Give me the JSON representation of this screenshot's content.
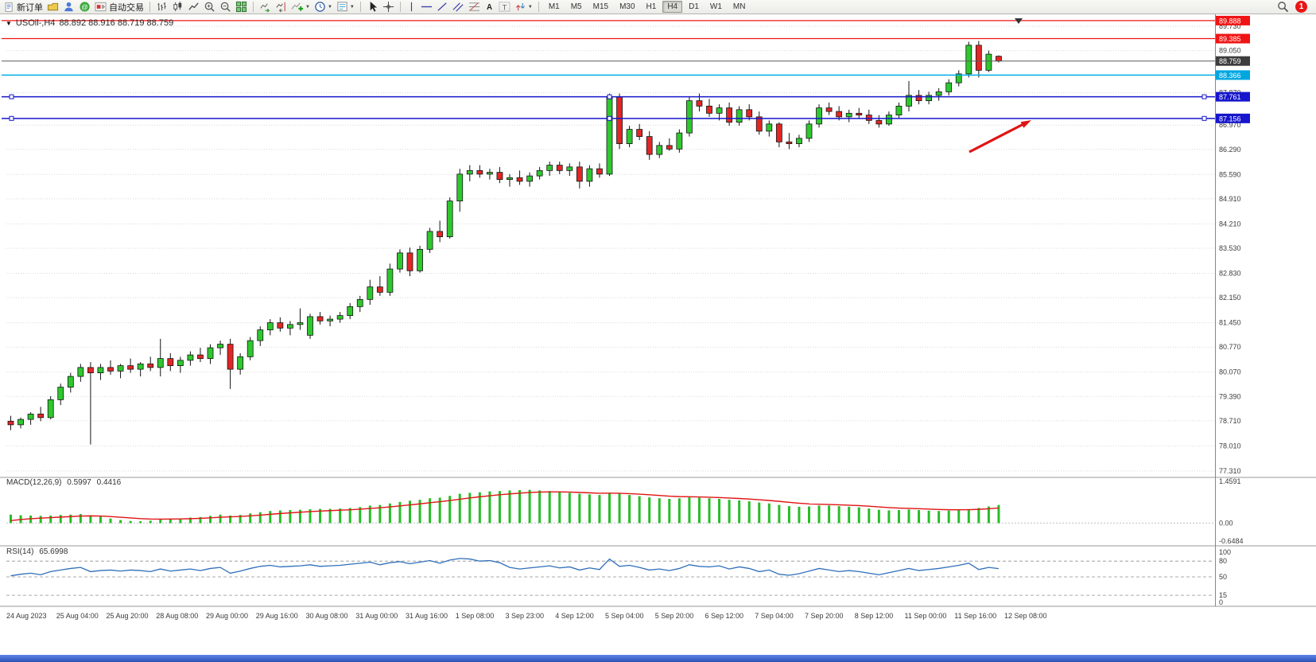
{
  "window": {
    "symbol": "USOil-,H4",
    "ohlc": "88.892 88.916 88.719 88.759"
  },
  "toolbar": {
    "new_order_label": "新订单",
    "autotrading_label": "自动交易",
    "timeframes": [
      "M1",
      "M5",
      "M15",
      "M30",
      "H1",
      "H4",
      "D1",
      "W1",
      "MN"
    ],
    "active_timeframe": "H4",
    "notification_count": "1",
    "icons": [
      "new-order-icon",
      "profiles-icon",
      "person-icon",
      "community-icon",
      "autotrading-icon",
      "bars-icon",
      "candlesticks-icon",
      "line-chart-icon",
      "zoom-in-icon",
      "zoom-out-icon",
      "tile-windows-icon",
      "auto-scroll-icon",
      "chart-shift-icon",
      "indicators-icon",
      "periods-icon",
      "templates-icon",
      "cursor-icon",
      "crosshair-icon",
      "vertical-line-icon",
      "horizontal-line-icon",
      "trendline-icon",
      "channel-icon",
      "fibonacci-icon",
      "text-icon",
      "label-icon",
      "arrows-icon",
      "search-icon"
    ]
  },
  "indicators": {
    "macd_label": "MACD(12,26,9)",
    "macd_value": "0.5997",
    "macd_signal": "0.4416",
    "rsi_label": "RSI(14)",
    "rsi_value": "65.6998"
  },
  "chart_data": {
    "type": "candlestick",
    "symbol": "USOil-",
    "timeframe": "H4",
    "current": {
      "open": 88.892,
      "high": 88.916,
      "low": 88.719,
      "close": 88.759
    },
    "colors": {
      "up": "#2ec82e",
      "down": "#e22626",
      "wick": "#141414",
      "macd": "#28bc28",
      "signal": "#e01414",
      "rsi": "#2f6fba",
      "grid": "#d9d9d9"
    },
    "y_axis": {
      "labels": [
        "89.730",
        "89.050",
        "87.870",
        "86.970",
        "86.290",
        "85.590",
        "84.910",
        "84.210",
        "83.530",
        "82.830",
        "82.150",
        "81.450",
        "80.770",
        "80.070",
        "79.390",
        "78.710",
        "78.010",
        "77.310"
      ]
    },
    "price_lines": [
      {
        "price": "89.888",
        "color": "#f01414",
        "badge_color": "#f01414",
        "width": 1.2
      },
      {
        "price": "89.385",
        "color": "#f01414",
        "badge_color": "#f01414",
        "width": 1.2
      },
      {
        "price": "88.759",
        "color": "#5a5a5a",
        "badge_color": "#3d3d3d",
        "width": 1
      },
      {
        "price": "88.366",
        "color": "#00b0e8",
        "badge_color": "#00a6e0",
        "width": 1.5
      },
      {
        "price": "87.761",
        "color": "#1616cc",
        "badge_color": "#1616cc",
        "width": 1.5,
        "handles": true
      },
      {
        "price": "87.156",
        "color": "#1616cc",
        "badge_color": "#1616cc",
        "width": 1.5,
        "handles": true
      }
    ],
    "candles": [
      [
        78.7,
        78.85,
        78.45,
        78.6
      ],
      [
        78.6,
        78.8,
        78.5,
        78.75
      ],
      [
        78.75,
        78.95,
        78.6,
        78.9
      ],
      [
        78.9,
        79.1,
        78.7,
        78.8
      ],
      [
        78.8,
        79.4,
        78.75,
        79.3
      ],
      [
        79.3,
        79.75,
        79.15,
        79.65
      ],
      [
        79.65,
        80.05,
        79.5,
        79.95
      ],
      [
        79.95,
        80.3,
        79.8,
        80.2
      ],
      [
        80.2,
        80.35,
        78.05,
        80.05
      ],
      [
        80.05,
        80.3,
        79.85,
        80.2
      ],
      [
        80.2,
        80.4,
        80.0,
        80.1
      ],
      [
        80.1,
        80.3,
        79.9,
        80.25
      ],
      [
        80.25,
        80.45,
        80.05,
        80.15
      ],
      [
        80.15,
        80.35,
        79.95,
        80.3
      ],
      [
        80.3,
        80.5,
        80.1,
        80.2
      ],
      [
        80.2,
        81.0,
        79.95,
        80.45
      ],
      [
        80.45,
        80.6,
        80.1,
        80.25
      ],
      [
        80.25,
        80.5,
        80.05,
        80.4
      ],
      [
        80.4,
        80.65,
        80.25,
        80.55
      ],
      [
        80.55,
        80.75,
        80.35,
        80.45
      ],
      [
        80.45,
        80.85,
        80.3,
        80.75
      ],
      [
        80.75,
        80.95,
        80.55,
        80.85
      ],
      [
        80.85,
        81.0,
        79.6,
        80.15
      ],
      [
        80.15,
        80.6,
        80.0,
        80.5
      ],
      [
        80.5,
        81.05,
        80.4,
        80.95
      ],
      [
        80.95,
        81.35,
        80.8,
        81.25
      ],
      [
        81.25,
        81.55,
        81.1,
        81.45
      ],
      [
        81.45,
        81.6,
        81.2,
        81.3
      ],
      [
        81.3,
        81.5,
        81.1,
        81.4
      ],
      [
        81.4,
        81.85,
        81.25,
        81.45
      ],
      [
        81.1,
        81.7,
        81.0,
        81.62
      ],
      [
        81.62,
        81.75,
        81.4,
        81.5
      ],
      [
        81.5,
        81.65,
        81.35,
        81.55
      ],
      [
        81.55,
        81.75,
        81.45,
        81.65
      ],
      [
        81.65,
        82.0,
        81.55,
        81.9
      ],
      [
        81.9,
        82.2,
        81.75,
        82.1
      ],
      [
        82.1,
        82.65,
        81.95,
        82.45
      ],
      [
        82.45,
        82.75,
        82.2,
        82.3
      ],
      [
        82.3,
        83.1,
        82.2,
        82.95
      ],
      [
        82.95,
        83.5,
        82.85,
        83.4
      ],
      [
        83.4,
        83.55,
        82.75,
        82.9
      ],
      [
        82.9,
        83.6,
        82.85,
        83.5
      ],
      [
        83.5,
        84.1,
        83.4,
        84.0
      ],
      [
        84.0,
        84.3,
        83.7,
        83.85
      ],
      [
        83.85,
        84.95,
        83.8,
        84.85
      ],
      [
        84.85,
        85.75,
        84.55,
        85.6
      ],
      [
        85.6,
        85.85,
        85.4,
        85.7
      ],
      [
        85.7,
        85.85,
        85.5,
        85.6
      ],
      [
        85.6,
        85.75,
        85.45,
        85.65
      ],
      [
        85.65,
        85.8,
        85.35,
        85.45
      ],
      [
        85.45,
        85.6,
        85.25,
        85.5
      ],
      [
        85.5,
        85.7,
        85.3,
        85.4
      ],
      [
        85.4,
        85.65,
        85.25,
        85.55
      ],
      [
        85.55,
        85.8,
        85.45,
        85.7
      ],
      [
        85.7,
        85.95,
        85.55,
        85.85
      ],
      [
        85.85,
        85.95,
        85.6,
        85.7
      ],
      [
        85.7,
        85.9,
        85.55,
        85.8
      ],
      [
        85.8,
        85.95,
        85.2,
        85.4
      ],
      [
        85.4,
        85.85,
        85.25,
        85.75
      ],
      [
        85.75,
        85.9,
        85.5,
        85.6
      ],
      [
        85.6,
        87.85,
        85.55,
        87.75
      ],
      [
        87.75,
        87.85,
        86.3,
        86.45
      ],
      [
        86.45,
        86.95,
        86.35,
        86.85
      ],
      [
        86.85,
        87.0,
        86.55,
        86.65
      ],
      [
        86.65,
        86.8,
        86.0,
        86.15
      ],
      [
        86.15,
        86.5,
        86.05,
        86.4
      ],
      [
        86.4,
        86.6,
        86.25,
        86.3
      ],
      [
        86.3,
        86.85,
        86.2,
        86.75
      ],
      [
        86.75,
        87.75,
        86.65,
        87.65
      ],
      [
        87.65,
        87.85,
        87.35,
        87.5
      ],
      [
        87.5,
        87.7,
        87.2,
        87.3
      ],
      [
        87.3,
        87.55,
        87.1,
        87.45
      ],
      [
        87.45,
        87.6,
        86.95,
        87.05
      ],
      [
        87.05,
        87.5,
        86.95,
        87.4
      ],
      [
        87.4,
        87.55,
        87.1,
        87.2
      ],
      [
        87.2,
        87.35,
        86.7,
        86.8
      ],
      [
        86.8,
        87.1,
        86.65,
        87.0
      ],
      [
        87.0,
        87.05,
        86.35,
        86.5
      ],
      [
        86.5,
        86.75,
        86.3,
        86.45
      ],
      [
        86.45,
        86.7,
        86.35,
        86.6
      ],
      [
        86.6,
        87.1,
        86.5,
        87.0
      ],
      [
        87.0,
        87.55,
        86.9,
        87.45
      ],
      [
        87.45,
        87.6,
        87.25,
        87.35
      ],
      [
        87.35,
        87.5,
        87.1,
        87.2
      ],
      [
        87.2,
        87.4,
        87.05,
        87.3
      ],
      [
        87.3,
        87.45,
        87.15,
        87.25
      ],
      [
        87.25,
        87.4,
        87.0,
        87.1
      ],
      [
        87.1,
        87.25,
        86.9,
        87.0
      ],
      [
        87.0,
        87.35,
        86.95,
        87.25
      ],
      [
        87.25,
        87.6,
        87.15,
        87.5
      ],
      [
        87.5,
        88.2,
        87.35,
        87.8
      ],
      [
        87.8,
        87.95,
        87.55,
        87.65
      ],
      [
        87.65,
        87.9,
        87.55,
        87.8
      ],
      [
        87.8,
        88.0,
        87.65,
        87.9
      ],
      [
        87.9,
        88.25,
        87.8,
        88.15
      ],
      [
        88.15,
        88.5,
        88.05,
        88.4
      ],
      [
        88.4,
        89.3,
        88.3,
        89.2
      ],
      [
        89.2,
        89.32,
        88.3,
        88.5
      ],
      [
        88.5,
        89.05,
        88.45,
        88.95
      ],
      [
        88.892,
        88.916,
        88.719,
        88.759
      ]
    ],
    "macd": [
      0.28,
      0.26,
      0.25,
      0.24,
      0.25,
      0.27,
      0.28,
      0.3,
      0.26,
      0.22,
      0.15,
      0.1,
      0.07,
      0.06,
      0.08,
      0.12,
      0.14,
      0.15,
      0.18,
      0.2,
      0.24,
      0.28,
      0.25,
      0.27,
      0.32,
      0.36,
      0.4,
      0.42,
      0.43,
      0.44,
      0.46,
      0.47,
      0.47,
      0.48,
      0.5,
      0.53,
      0.58,
      0.6,
      0.65,
      0.7,
      0.74,
      0.77,
      0.82,
      0.84,
      0.9,
      0.97,
      1.0,
      1.02,
      1.05,
      1.06,
      1.08,
      1.09,
      1.1,
      1.08,
      1.06,
      1.03,
      1.0,
      0.97,
      0.95,
      0.93,
      1.0,
      0.97,
      0.93,
      0.89,
      0.85,
      0.82,
      0.8,
      0.82,
      0.85,
      0.84,
      0.82,
      0.8,
      0.77,
      0.75,
      0.72,
      0.68,
      0.65,
      0.6,
      0.56,
      0.54,
      0.55,
      0.58,
      0.58,
      0.56,
      0.54,
      0.52,
      0.48,
      0.44,
      0.42,
      0.43,
      0.45,
      0.43,
      0.41,
      0.4,
      0.41,
      0.43,
      0.46,
      0.5,
      0.55,
      0.6
    ],
    "macd_axis": [
      "1.4591",
      "0.00",
      "-0.6484"
    ],
    "rsi": [
      52,
      55,
      57,
      54,
      60,
      63,
      66,
      68,
      60,
      62,
      63,
      61,
      63,
      62,
      60,
      65,
      61,
      63,
      65,
      62,
      66,
      68,
      57,
      61,
      66,
      70,
      72,
      69,
      70,
      71,
      73,
      70,
      71,
      72,
      74,
      76,
      78,
      73,
      77,
      79,
      75,
      78,
      81,
      76,
      82,
      85,
      84,
      80,
      81,
      77,
      68,
      65,
      67,
      69,
      71,
      67,
      69,
      63,
      67,
      64,
      84,
      70,
      72,
      68,
      63,
      65,
      62,
      66,
      73,
      70,
      69,
      71,
      65,
      69,
      66,
      60,
      63,
      55,
      53,
      56,
      61,
      66,
      63,
      60,
      62,
      60,
      57,
      54,
      58,
      62,
      66,
      62,
      64,
      66,
      69,
      72,
      76,
      64,
      68,
      65.7
    ],
    "rsi_axis": [
      "100",
      "80",
      "50",
      "15",
      "0"
    ],
    "rsi_levels": [
      80,
      50,
      15
    ],
    "time_labels": [
      "24 Aug 2023",
      "25 Aug 04:00",
      "25 Aug 20:00",
      "28 Aug 08:00",
      "29 Aug 00:00",
      "29 Aug 16:00",
      "30 Aug 08:00",
      "31 Aug 00:00",
      "31 Aug 16:00",
      "1 Sep 08:00",
      "3 Sep 23:00",
      "4 Sep 12:00",
      "5 Sep 04:00",
      "5 Sep 20:00",
      "6 Sep 12:00",
      "7 Sep 04:00",
      "7 Sep 20:00",
      "8 Sep 12:00",
      "11 Sep 00:00",
      "11 Sep 16:00",
      "12 Sep 08:00"
    ],
    "annotation_arrow": {
      "color": "#e01414"
    }
  }
}
